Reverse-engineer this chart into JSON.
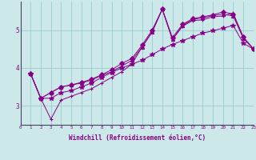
{
  "xlabel": "Windchill (Refroidissement éolien,°C)",
  "bg_color": "#cce8e8",
  "line_color": "#880088",
  "grid_color": "#99cccc",
  "xmin": 0,
  "xmax": 23,
  "ymin": 2.5,
  "ymax": 5.75,
  "yticks": [
    3,
    4,
    5
  ],
  "xticks": [
    0,
    1,
    2,
    3,
    4,
    5,
    6,
    7,
    8,
    9,
    10,
    11,
    12,
    13,
    14,
    15,
    16,
    17,
    18,
    19,
    20,
    21,
    22,
    23
  ],
  "series": [
    [
      3.85,
      3.2,
      2.65,
      3.15,
      3.25,
      3.35,
      3.45,
      3.6,
      3.75,
      3.9,
      4.1,
      4.55,
      4.95,
      5.55,
      4.75,
      5.1,
      5.25,
      5.27,
      5.35,
      5.37,
      5.45,
      4.8,
      4.5
    ],
    [
      3.85,
      3.2,
      3.35,
      3.5,
      3.55,
      3.6,
      3.68,
      3.8,
      3.9,
      4.05,
      4.2,
      4.55,
      4.95,
      5.55,
      4.75,
      5.12,
      5.28,
      5.32,
      5.38,
      5.42,
      5.37,
      4.78,
      4.5
    ],
    [
      3.85,
      3.2,
      3.35,
      3.5,
      3.55,
      3.62,
      3.7,
      3.82,
      3.95,
      4.12,
      4.25,
      4.6,
      5.0,
      5.55,
      4.8,
      5.15,
      5.3,
      5.35,
      5.4,
      5.48,
      5.42,
      4.82,
      4.5
    ],
    [
      3.85,
      3.2,
      3.2,
      3.35,
      3.4,
      3.5,
      3.6,
      3.75,
      3.88,
      4.0,
      4.1,
      4.2,
      4.35,
      4.5,
      4.62,
      4.72,
      4.82,
      4.92,
      4.98,
      5.05,
      5.12,
      4.65,
      4.5
    ]
  ],
  "markers": [
    "+",
    "^",
    "D",
    "*"
  ]
}
